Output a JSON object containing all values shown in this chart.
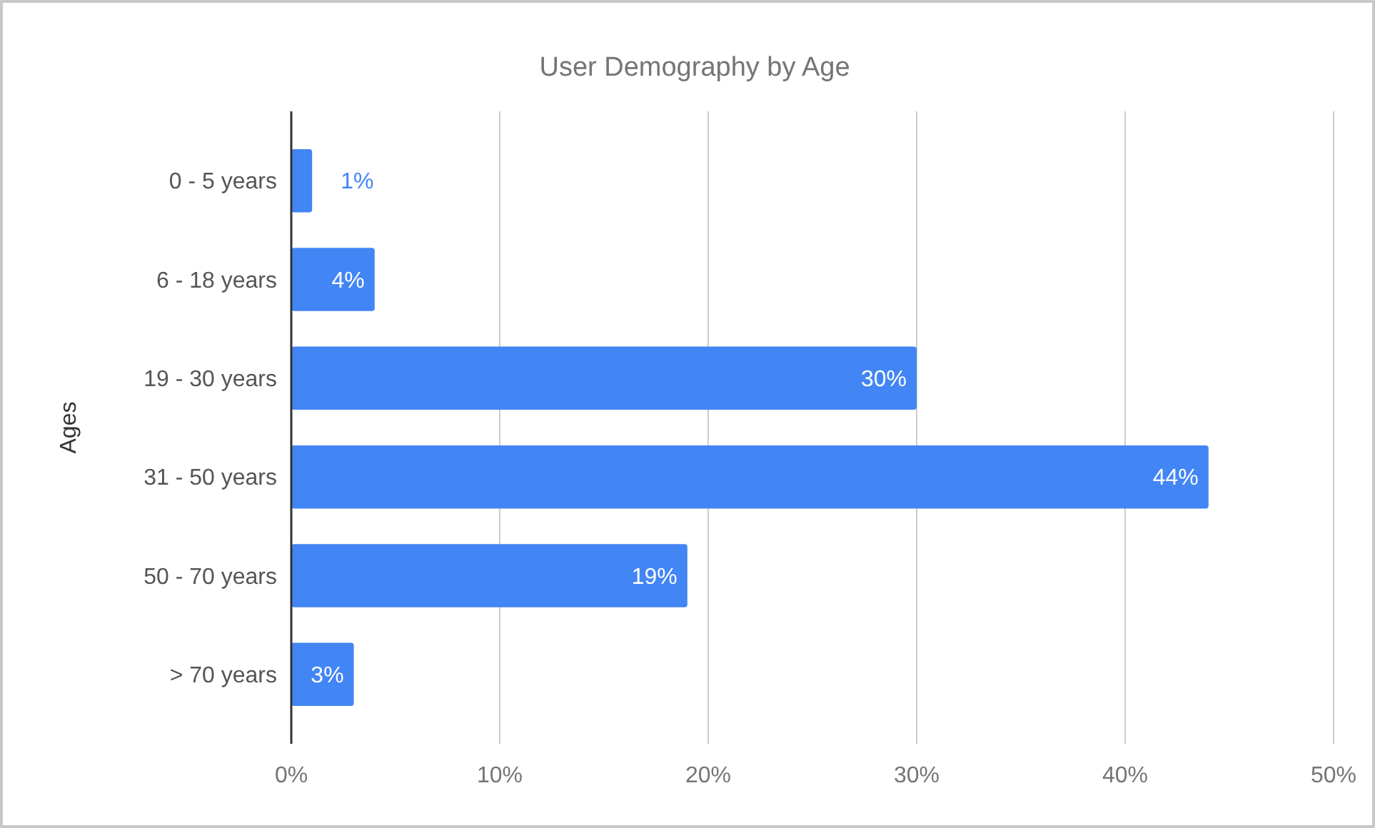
{
  "chart_data": {
    "type": "bar",
    "orientation": "horizontal",
    "title": "User Demography by Age",
    "ylabel": "Ages",
    "categories": [
      "0 - 5 years",
      "6 - 18 years",
      "19 - 30 years",
      "31 - 50 years",
      "50 - 70 years",
      "> 70 years"
    ],
    "values": [
      1,
      4,
      30,
      44,
      19,
      3
    ],
    "value_labels": [
      "1%",
      "4%",
      "30%",
      "44%",
      "19%",
      "3%"
    ],
    "color": "#4285f4",
    "xlim": [
      0,
      50
    ],
    "xticks": [
      {
        "value": 0,
        "label": "0%"
      },
      {
        "value": 10,
        "label": "10%"
      },
      {
        "value": 20,
        "label": "20%"
      },
      {
        "value": 30,
        "label": "30%"
      },
      {
        "value": 40,
        "label": "40%"
      },
      {
        "value": 50,
        "label": "50%"
      }
    ],
    "grid": "x"
  }
}
